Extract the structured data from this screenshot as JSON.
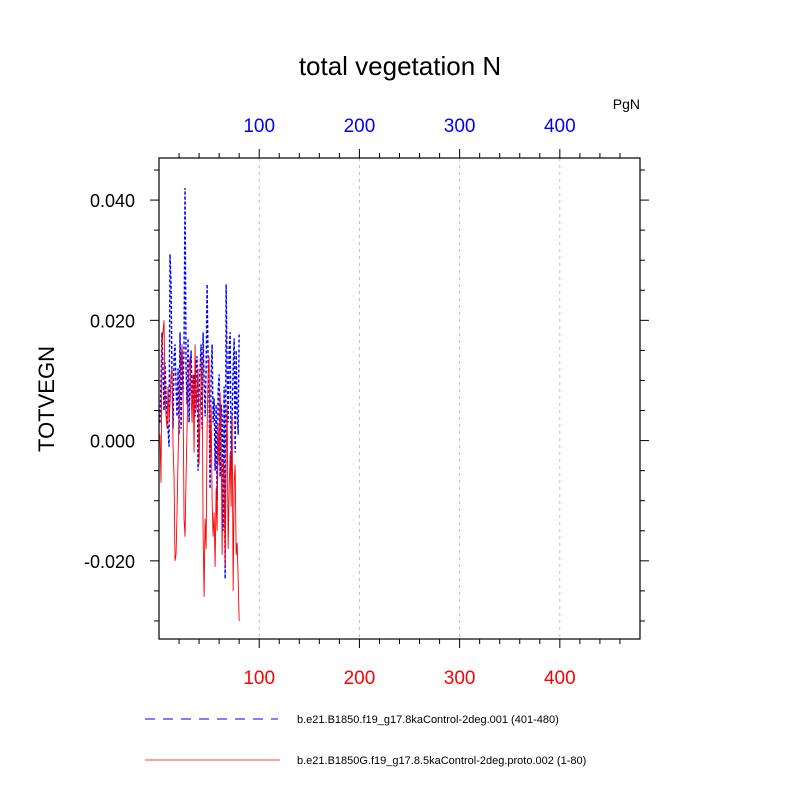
{
  "chart_data": {
    "type": "line",
    "title": "total vegetation N",
    "units_label": "PgN",
    "ylabel": "TOTVEGN",
    "xlim": [
      0,
      480
    ],
    "ylim": [
      -0.033,
      0.047
    ],
    "x_ticks": [
      100,
      200,
      300,
      400
    ],
    "x_tick_labels": [
      "100",
      "200",
      "300",
      "400"
    ],
    "y_ticks": [
      -0.02,
      0.0,
      0.02,
      0.04
    ],
    "y_tick_labels": [
      "-0.020",
      "0.000",
      "0.020",
      "0.040"
    ],
    "top_axis_color": "#0000ff",
    "bottom_axis_color": "#ff0000",
    "grid": "vertical dashed at major x ticks",
    "legend_position": "bottom",
    "series": [
      {
        "name": "b.e21.B1850.f19_g17.8kaControl-2deg.001 (401-480)",
        "color": "#0000ff",
        "style": "dashed",
        "x": [
          1,
          2,
          3,
          4,
          5,
          6,
          7,
          8,
          9,
          10,
          11,
          12,
          13,
          14,
          15,
          16,
          17,
          18,
          19,
          20,
          21,
          22,
          23,
          24,
          25,
          26,
          27,
          28,
          29,
          30,
          31,
          32,
          33,
          34,
          35,
          36,
          37,
          38,
          39,
          40,
          41,
          42,
          43,
          44,
          45,
          46,
          47,
          48,
          49,
          50,
          51,
          52,
          53,
          54,
          55,
          56,
          57,
          58,
          59,
          60,
          61,
          62,
          63,
          64,
          65,
          66,
          67,
          68,
          69,
          70,
          71,
          72,
          73,
          74,
          75,
          76,
          77,
          78,
          79,
          80
        ],
        "y": [
          0.003,
          0.01,
          0.018,
          0.012,
          0.005,
          0.013,
          0.008,
          0.004,
          0.002,
          -0.001,
          0.031,
          0.026,
          0.01,
          0.002,
          0.014,
          0.016,
          0.009,
          0.004,
          0.012,
          0.001,
          0.018,
          0.002,
          0.015,
          0.008,
          0.016,
          0.042,
          0.012,
          0.006,
          0.017,
          0.003,
          0.01,
          0.015,
          0.008,
          0.006,
          0.011,
          0.004,
          0.013,
          0.014,
          -0.005,
          0.008,
          0.012,
          0.016,
          0.002,
          0.018,
          0.01,
          0.004,
          0.012,
          0.026,
          0.013,
          0.007,
          -0.008,
          0.011,
          0.016,
          0.003,
          0.007,
          -0.005,
          0.006,
          -0.01,
          0.008,
          0.011,
          -0.006,
          0.006,
          0.004,
          -0.015,
          0.009,
          -0.023,
          0.026,
          0.012,
          0.003,
          0.015,
          0.018,
          -0.005,
          0.004,
          0.012,
          0.017,
          -0.002,
          0.015,
          0.005,
          0.001,
          0.018
        ]
      },
      {
        "name": "b.e21.B1850G.f19_g17.8.5kaControl-2deg.proto.002 (1-80)",
        "color": "#ff0000",
        "style": "solid",
        "x": [
          1,
          2,
          3,
          4,
          5,
          6,
          7,
          8,
          9,
          10,
          11,
          12,
          13,
          14,
          15,
          16,
          17,
          18,
          19,
          20,
          21,
          22,
          23,
          24,
          25,
          26,
          27,
          28,
          29,
          30,
          31,
          32,
          33,
          34,
          35,
          36,
          37,
          38,
          39,
          40,
          41,
          42,
          43,
          44,
          45,
          46,
          47,
          48,
          49,
          50,
          51,
          52,
          53,
          54,
          55,
          56,
          57,
          58,
          59,
          60,
          61,
          62,
          63,
          64,
          65,
          66,
          67,
          68,
          69,
          70,
          71,
          72,
          73,
          74,
          75,
          76,
          77,
          78,
          79,
          80
        ],
        "y": [
          0.001,
          -0.007,
          0.016,
          0.018,
          0.02,
          0.008,
          0.004,
          0.002,
          0.009,
          0.003,
          0.006,
          0.011,
          0.012,
          -0.001,
          -0.006,
          -0.02,
          -0.019,
          -0.012,
          -0.003,
          0.004,
          0.01,
          0.013,
          0.016,
          0.008,
          -0.013,
          -0.016,
          -0.006,
          0.002,
          0.009,
          0.012,
          0.014,
          0.008,
          0.003,
          0.011,
          -0.002,
          0.016,
          0.005,
          0.009,
          0.012,
          -0.004,
          0.004,
          0.01,
          0.014,
          -0.015,
          -0.026,
          -0.013,
          -0.018,
          0.002,
          0.011,
          0.014,
          -0.004,
          0.006,
          -0.01,
          -0.016,
          -0.012,
          -0.021,
          -0.008,
          -0.015,
          0.003,
          -0.004,
          0.008,
          0.001,
          -0.019,
          -0.003,
          -0.006,
          -0.021,
          -0.003,
          0.006,
          -0.018,
          -0.008,
          -0.002,
          -0.011,
          0.004,
          -0.025,
          -0.007,
          -0.004,
          -0.019,
          -0.017,
          -0.023,
          -0.03
        ]
      }
    ]
  }
}
